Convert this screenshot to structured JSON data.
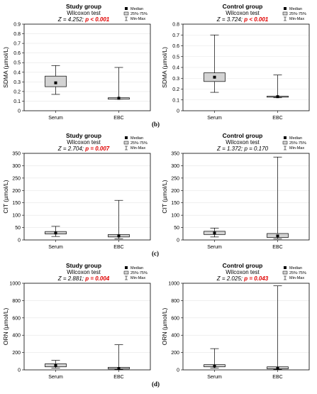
{
  "figure": {
    "row_labels": [
      "(b)",
      "(c)",
      "(d)"
    ]
  },
  "legend": {
    "median": "Median",
    "iqr": "25%-75%",
    "range": "Min-Max"
  },
  "colors": {
    "box_fill": "#d3d3d3",
    "axis": "#000000",
    "grid": "#e6e6e6",
    "p_value": "#e00000"
  },
  "chart_data": [
    {
      "type": "boxplot",
      "title": "Study group",
      "subtitle": "Wilcoxon test",
      "statistic": "Z = 4.252;",
      "p_value": "p < 0.001",
      "ylabel": "SDMA (µmol/L)",
      "ylim": [
        0,
        0.9
      ],
      "yticks": [
        "0",
        "0.1",
        "0.2",
        "0.3",
        "0.4",
        "0.5",
        "0.6",
        "0.7",
        "0.8",
        "0.9"
      ],
      "categories": [
        "Serum",
        "EBC"
      ],
      "series": [
        {
          "median": 0.29,
          "q1": 0.25,
          "q3": 0.36,
          "min": 0.17,
          "max": 0.47
        },
        {
          "median": 0.13,
          "q1": 0.12,
          "q3": 0.135,
          "min": 0.12,
          "max": 0.45
        }
      ]
    },
    {
      "type": "boxplot",
      "title": "Control group",
      "subtitle": "Wilcoxon test",
      "statistic": "Z = 3.724;",
      "p_value": "p < 0.001",
      "ylabel": "SDMA (µmol/L)",
      "ylim": [
        0,
        0.8
      ],
      "yticks": [
        "0",
        "0.1",
        "0.2",
        "0.3",
        "0.4",
        "0.5",
        "0.6",
        "0.7",
        "0.8"
      ],
      "categories": [
        "Serum",
        "EBC"
      ],
      "series": [
        {
          "median": 0.31,
          "q1": 0.27,
          "q3": 0.35,
          "min": 0.17,
          "max": 0.7
        },
        {
          "median": 0.13,
          "q1": 0.125,
          "q3": 0.135,
          "min": 0.12,
          "max": 0.33
        }
      ]
    },
    {
      "type": "boxplot",
      "title": "Study group",
      "subtitle": "Wilcoxon test",
      "statistic": "Z = 2.704;",
      "p_value": "p = 0.007",
      "ylabel": "CIT (µmol/L)",
      "ylim": [
        0,
        350
      ],
      "yticks": [
        "0",
        "50",
        "100",
        "150",
        "200",
        "250",
        "300",
        "350"
      ],
      "categories": [
        "Serum",
        "EBC"
      ],
      "series": [
        {
          "median": 28,
          "q1": 24,
          "q3": 34,
          "min": 14,
          "max": 55
        },
        {
          "median": 16,
          "q1": 12,
          "q3": 22,
          "min": 5,
          "max": 160
        }
      ]
    },
    {
      "type": "boxplot",
      "title": "Control group",
      "subtitle": "Wilcoxon test",
      "statistic": "Z = 1.372;",
      "p_value": "p = 0.170",
      "ylabel": "CIT (µmol/L)",
      "ylim": [
        0,
        350
      ],
      "yticks": [
        "0",
        "50",
        "100",
        "150",
        "200",
        "250",
        "300",
        "350"
      ],
      "categories": [
        "Serum",
        "EBC"
      ],
      "series": [
        {
          "median": 28,
          "q1": 22,
          "q3": 35,
          "min": 12,
          "max": 48
        },
        {
          "median": 16,
          "q1": 10,
          "q3": 26,
          "min": 5,
          "max": 335
        }
      ]
    },
    {
      "type": "boxplot",
      "title": "Study group",
      "subtitle": "Wilcoxon test",
      "statistic": "Z = 2.881;",
      "p_value": "p = 0.004",
      "ylabel": "ORN (µmol/L)",
      "ylim": [
        0,
        1000
      ],
      "yticks": [
        "0",
        "200",
        "400",
        "600",
        "800",
        "1000"
      ],
      "categories": [
        "Serum",
        "EBC"
      ],
      "series": [
        {
          "median": 50,
          "q1": 35,
          "q3": 70,
          "min": 20,
          "max": 110
        },
        {
          "median": 15,
          "q1": 10,
          "q3": 30,
          "min": 5,
          "max": 290
        }
      ]
    },
    {
      "type": "boxplot",
      "title": "Control group",
      "subtitle": "Wilcoxon test",
      "statistic": "Z = 2.025;",
      "p_value": "p = 0.043",
      "ylabel": "ORN (µmol/L)",
      "ylim": [
        0,
        1000
      ],
      "yticks": [
        "0",
        "200",
        "400",
        "600",
        "800",
        "1000"
      ],
      "categories": [
        "Serum",
        "EBC"
      ],
      "series": [
        {
          "median": 45,
          "q1": 35,
          "q3": 60,
          "min": 20,
          "max": 245
        },
        {
          "median": 20,
          "q1": 12,
          "q3": 35,
          "min": 5,
          "max": 970
        }
      ]
    }
  ]
}
